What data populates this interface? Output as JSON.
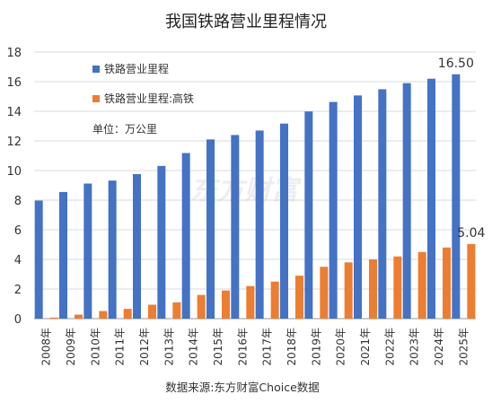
{
  "chart_data": {
    "type": "bar",
    "title": "我国铁路营业里程情况",
    "unit_note": "单位：万公里",
    "source": "数据来源:东方财富Choice数据",
    "watermark": "东方财富",
    "categories": [
      "2008年",
      "2009年",
      "2010年",
      "2011年",
      "2012年",
      "2013年",
      "2014年",
      "2015年",
      "2016年",
      "2017年",
      "2018年",
      "2019年",
      "2020年",
      "2021年",
      "2022年",
      "2023年",
      "2024年",
      "2025年"
    ],
    "series": [
      {
        "name": "铁路营业里程",
        "color": "#4472C4",
        "values": [
          7.97,
          8.55,
          9.12,
          9.32,
          9.76,
          10.31,
          11.18,
          12.1,
          12.4,
          12.7,
          13.17,
          13.99,
          14.63,
          15.07,
          15.49,
          15.9,
          16.2,
          16.5
        ]
      },
      {
        "name": "铁路营业里程:高铁",
        "color": "#ED7D31",
        "values": [
          0.07,
          0.27,
          0.51,
          0.66,
          0.94,
          1.1,
          1.6,
          1.9,
          2.2,
          2.5,
          2.9,
          3.5,
          3.8,
          4.0,
          4.2,
          4.5,
          4.8,
          5.04
        ]
      }
    ],
    "data_labels": [
      {
        "series": 0,
        "index": 17,
        "text": "16.50"
      },
      {
        "series": 1,
        "index": 17,
        "text": "5.04"
      }
    ],
    "yticks": [
      "0",
      "2",
      "4",
      "6",
      "8",
      "10",
      "12",
      "14",
      "16",
      "18"
    ],
    "ylim": [
      0,
      18
    ],
    "grid": true,
    "legend_position": "top-left"
  }
}
